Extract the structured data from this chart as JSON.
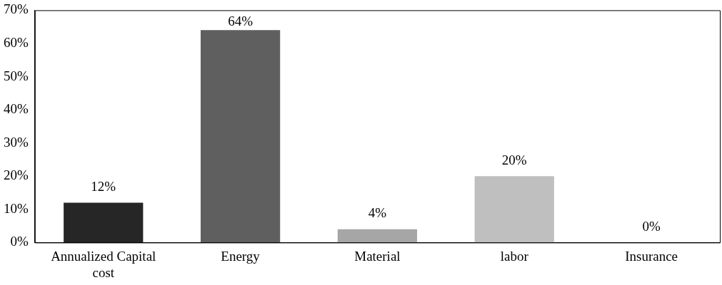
{
  "chart_data": {
    "type": "bar",
    "categories": [
      "Annualized Capital cost",
      "Energy",
      "Material",
      "labor",
      "Insurance"
    ],
    "values": [
      12,
      64,
      4,
      20,
      0
    ],
    "colors": [
      "#262626",
      "#5f5f5f",
      "#a6a6a6",
      "#bfbfbf",
      "#d9d9d9"
    ],
    "value_labels": [
      "12%",
      "64%",
      "4%",
      "20%",
      "0%"
    ],
    "ylim": [
      0,
      70
    ],
    "yticks": [
      {
        "value": 0,
        "label": "0%"
      },
      {
        "value": 10,
        "label": "10%"
      },
      {
        "value": 20,
        "label": "20%"
      },
      {
        "value": 30,
        "label": "30%"
      },
      {
        "value": 40,
        "label": "40%"
      },
      {
        "value": 50,
        "label": "50%"
      },
      {
        "value": 60,
        "label": "60%"
      },
      {
        "value": 70,
        "label": "70%"
      }
    ],
    "grid": false,
    "legend": false
  }
}
